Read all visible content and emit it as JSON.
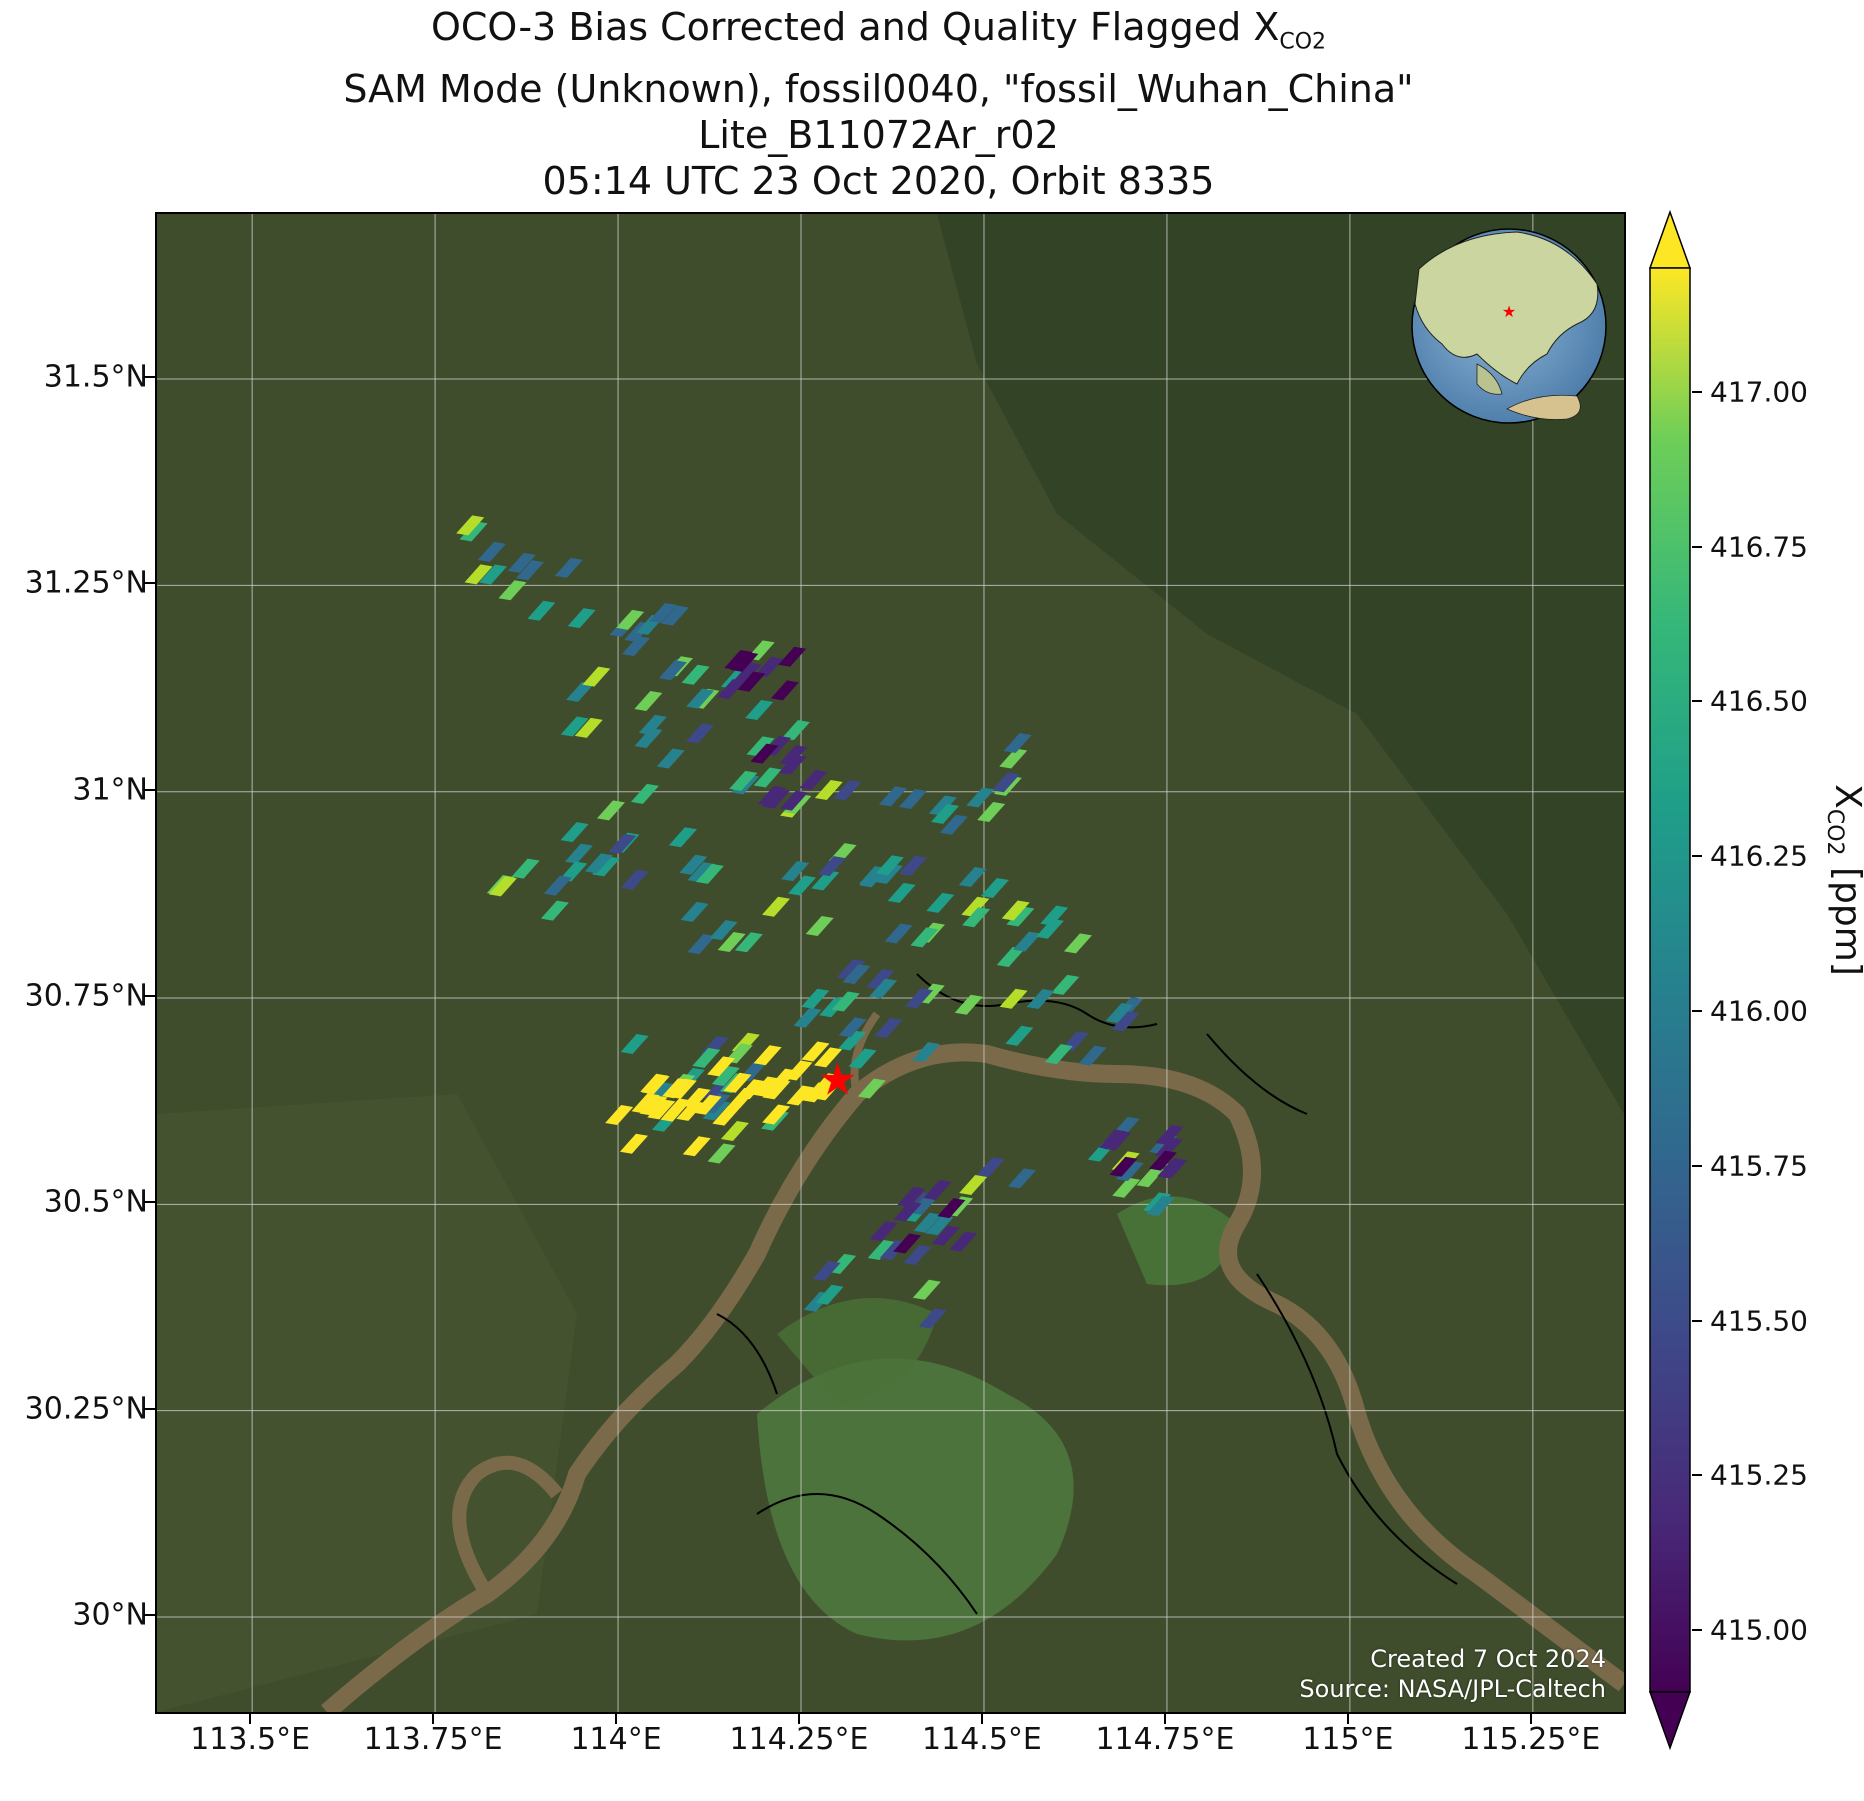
{
  "title": {
    "line1_prefix": "OCO-3 Bias Corrected and Quality Flagged X",
    "line1_sub": "CO2",
    "line2": "SAM Mode (Unknown), fossil0040, \"fossil_Wuhan_China\"",
    "line3": "Lite_B11072Ar_r02",
    "line4": "05:14 UTC 23 Oct 2020, Orbit 8335"
  },
  "map": {
    "lon_range": [
      113.37,
      115.38
    ],
    "lat_range": [
      29.88,
      31.7
    ],
    "lat_ticks": [
      {
        "value": 31.5,
        "label": "31.5°N"
      },
      {
        "value": 31.25,
        "label": "31.25°N"
      },
      {
        "value": 31.0,
        "label": "31°N"
      },
      {
        "value": 30.75,
        "label": "30.75°N"
      },
      {
        "value": 30.5,
        "label": "30.5°N"
      },
      {
        "value": 30.25,
        "label": "30.25°N"
      },
      {
        "value": 30.0,
        "label": "30°N"
      }
    ],
    "lon_ticks": [
      {
        "value": 113.5,
        "label": "113.5°E"
      },
      {
        "value": 113.75,
        "label": "113.75°E"
      },
      {
        "value": 114.0,
        "label": "114°E"
      },
      {
        "value": 114.25,
        "label": "114.25°E"
      },
      {
        "value": 114.5,
        "label": "114.5°E"
      },
      {
        "value": 114.75,
        "label": "114.75°E"
      },
      {
        "value": 115.0,
        "label": "115°E"
      },
      {
        "value": 115.25,
        "label": "115.25°E"
      }
    ],
    "target": {
      "name": "fossil_Wuhan_China",
      "lon": 114.3,
      "lat": 30.65,
      "marker_color": "#ff0000"
    },
    "credit_line1": "Created 7 Oct 2024",
    "credit_line2": "Source: NASA/JPL-Caltech",
    "colors": {
      "land": "#3c4a2a",
      "river": "#7a6a4a",
      "lake": "#4f7a40",
      "grid": "#d0d0d0"
    }
  },
  "colorbar": {
    "label_main": "X",
    "label_sub": "CO2",
    "label_unit": "[ppm]",
    "colormap": "viridis",
    "vmin": 414.9,
    "vmax": 417.2,
    "extend": "both",
    "ticks": [
      {
        "value": 415.0,
        "label": "415.00"
      },
      {
        "value": 415.25,
        "label": "415.25"
      },
      {
        "value": 415.5,
        "label": "415.50"
      },
      {
        "value": 415.75,
        "label": "415.75"
      },
      {
        "value": 416.0,
        "label": "416.00"
      },
      {
        "value": 416.25,
        "label": "416.25"
      },
      {
        "value": 416.5,
        "label": "416.50"
      },
      {
        "value": 416.75,
        "label": "416.75"
      },
      {
        "value": 417.0,
        "label": "417.00"
      }
    ]
  }
}
